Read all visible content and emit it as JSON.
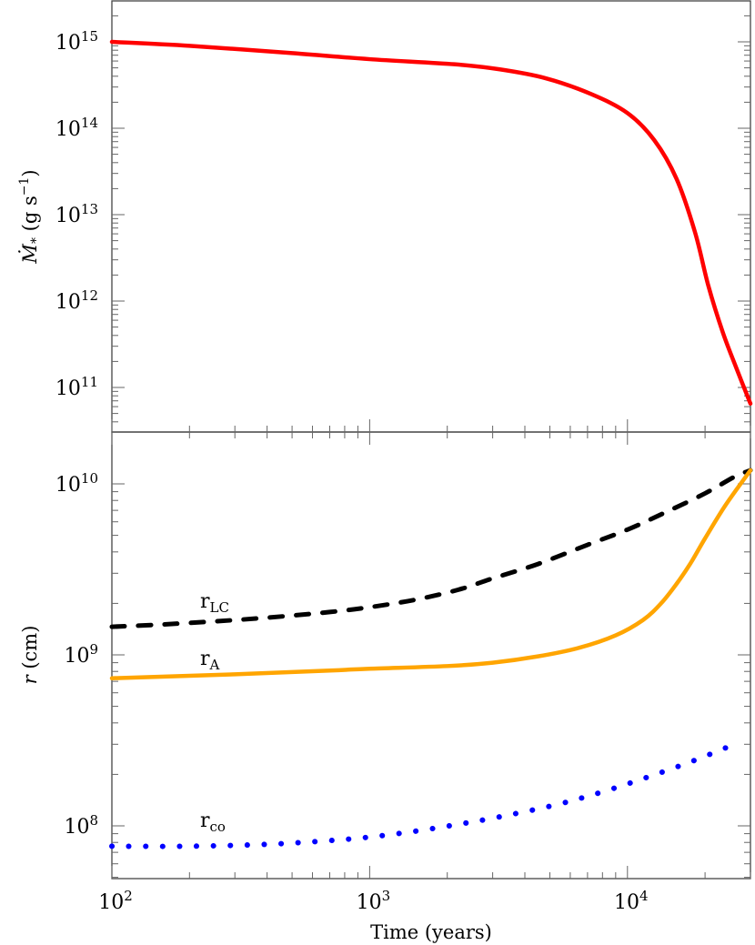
{
  "chart_data": [
    {
      "type": "line",
      "panel": "top",
      "title": "",
      "xlabel": "",
      "ylabel": "Ṁ* (g s⁻¹)",
      "ylabel_parts": {
        "symbol": "Ṁ",
        "sub": "*",
        "unit_open": " (g s",
        "unit_sup": "−1",
        "unit_close": ")"
      },
      "xscale": "log",
      "yscale": "log",
      "xlim": [
        100,
        30000
      ],
      "ylim": [
        30000000000.0,
        3000000000000000.0
      ],
      "y_ticks": [
        {
          "value": 100000000000.0,
          "base": "10",
          "exp": "11"
        },
        {
          "value": 1000000000000.0,
          "base": "10",
          "exp": "12"
        },
        {
          "value": 10000000000000.0,
          "base": "10",
          "exp": "13"
        },
        {
          "value": 100000000000000.0,
          "base": "10",
          "exp": "14"
        },
        {
          "value": 1000000000000000.0,
          "base": "10",
          "exp": "15"
        }
      ],
      "grid": false,
      "legend": null,
      "series": [
        {
          "name": "Mdot",
          "color": "#ff0000",
          "style": "solid",
          "x": [
            100,
            200,
            500,
            1000,
            2130,
            3200,
            4800,
            7200,
            10000,
            12700,
            15500,
            18300,
            20600,
            23400,
            26400,
            30000
          ],
          "y": [
            1000000000000000.0,
            900000000000000.0,
            740000000000000.0,
            630000000000000.0,
            550000000000000.0,
            480000000000000.0,
            380000000000000.0,
            250000000000000.0,
            150000000000000.0,
            73000000000000.0,
            26000000000000.0,
            6200000000000.0,
            1500000000000.0,
            440000000000.0,
            170000000000.0,
            65000000000.0
          ]
        }
      ]
    },
    {
      "type": "line",
      "panel": "bottom",
      "title": "",
      "xlabel": "Time (years)",
      "ylabel": "r (cm)",
      "ylabel_parts": {
        "symbol": "r",
        "unit": " (cm)"
      },
      "xscale": "log",
      "yscale": "log",
      "xlim": [
        100,
        30000
      ],
      "ylim": [
        50000000.0,
        20000000000.0
      ],
      "x_ticks": [
        {
          "value": 100,
          "base": "10",
          "exp": "2"
        },
        {
          "value": 1000,
          "base": "10",
          "exp": "3"
        },
        {
          "value": 10000,
          "base": "10",
          "exp": "4"
        }
      ],
      "y_ticks": [
        {
          "value": 100000000.0,
          "base": "10",
          "exp": "8"
        },
        {
          "value": 1000000000.0,
          "base": "10",
          "exp": "9"
        },
        {
          "value": 10000000000.0,
          "base": "10",
          "exp": "10"
        }
      ],
      "grid": false,
      "legend": null,
      "series": [
        {
          "name": "r_LC",
          "label_main": "r",
          "label_sub": "LC",
          "label_pos": {
            "x": 220,
            "y": 668
          },
          "color": "#000000",
          "style": "dashed",
          "x": [
            100,
            150,
            250,
            400,
            700,
            1000,
            1500,
            2200,
            3000,
            4500,
            7000,
            10000,
            14000,
            20000,
            26000,
            30000
          ],
          "y": [
            1460000000.0,
            1500000000.0,
            1570000000.0,
            1650000000.0,
            1780000000.0,
            1900000000.0,
            2100000000.0,
            2400000000.0,
            2800000000.0,
            3400000000.0,
            4400000000.0,
            5400000000.0,
            6800000000.0,
            8800000000.0,
            11000000000.0,
            12000000000.0
          ]
        },
        {
          "name": "r_A",
          "label_main": "r",
          "label_sub": "A",
          "label_pos": {
            "x": 220,
            "y": 731
          },
          "color": "#ffa500",
          "style": "solid",
          "x": [
            100,
            300,
            700,
            1000,
            2000,
            3000,
            4500,
            6500,
            9000,
            11500,
            13500,
            15500,
            17500,
            20000,
            24000,
            30000
          ],
          "y": [
            730000000.0,
            770000000.0,
            810000000.0,
            830000000.0,
            860000000.0,
            900000000.0,
            980000000.0,
            1100000000.0,
            1300000000.0,
            1600000000.0,
            2000000000.0,
            2600000000.0,
            3400000000.0,
            4800000000.0,
            7500000000.0,
            12000000000.0
          ]
        },
        {
          "name": "r_co",
          "label_main": "r",
          "label_sub": "co",
          "label_pos": {
            "x": 220,
            "y": 909
          },
          "color": "#0000ff",
          "style": "dotted",
          "x": [
            100,
            200,
            400,
            700,
            1000,
            1500,
            2200,
            3200,
            5300,
            8000,
            12000,
            18000,
            26000
          ],
          "y": [
            76000000.0,
            76000000.0,
            78000000.0,
            82000000.0,
            86000000.0,
            93000000.0,
            102000000.0,
            113000000.0,
            133000000.0,
            158000000.0,
            193000000.0,
            240000000.0,
            300000000.0
          ]
        }
      ]
    }
  ],
  "xaxis": {
    "label": "Time (years)"
  }
}
